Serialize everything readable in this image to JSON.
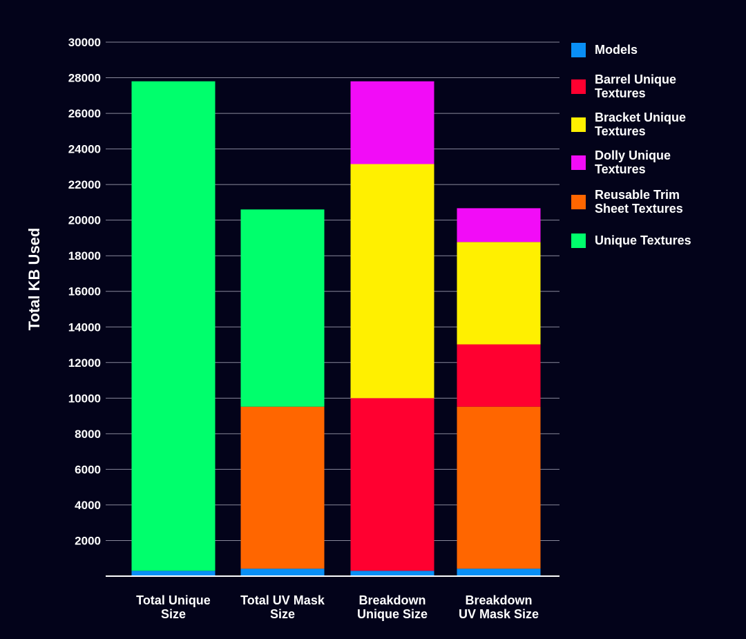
{
  "chart_data": {
    "type": "bar",
    "stacked": true,
    "title": "",
    "xlabel": "",
    "ylabel": "Total KB Used",
    "ylim": [
      0,
      30000
    ],
    "yticks": [
      2000,
      4000,
      6000,
      8000,
      10000,
      12000,
      14000,
      16000,
      18000,
      20000,
      22000,
      24000,
      26000,
      28000,
      30000
    ],
    "grid": true,
    "legend_position": "right",
    "categories": [
      [
        "Total Unique",
        "Size"
      ],
      [
        "Total UV Mask",
        "Size"
      ],
      [
        "Breakdown",
        "Unique Size"
      ],
      [
        "Breakdown",
        "UV Mask Size"
      ]
    ],
    "series": [
      {
        "name": "Models",
        "legend_lines": [
          "Models"
        ],
        "color": "#0a8ff5",
        "values": [
          300,
          420,
          300,
          420
        ]
      },
      {
        "name": "Barrel Unique Textures",
        "legend_lines": [
          "Barrel Unique",
          "Textures"
        ],
        "color": "#ff0030",
        "values": [
          0,
          0,
          9700,
          3500
        ]
      },
      {
        "name": "Bracket Unique Textures",
        "legend_lines": [
          "Bracket Unique",
          "Textures"
        ],
        "color": "#fff000",
        "values": [
          0,
          0,
          13150,
          5750
        ]
      },
      {
        "name": "Dolly Unique Textures",
        "legend_lines": [
          "Dolly Unique",
          "Textures"
        ],
        "color": "#f20cf7",
        "values": [
          0,
          0,
          4650,
          1900
        ]
      },
      {
        "name": "Reusable Trim Sheet Textures",
        "legend_lines": [
          "Reusable Trim",
          "Sheet Textures"
        ],
        "color": "#ff6600",
        "values": [
          0,
          9100,
          0,
          9100
        ]
      },
      {
        "name": "Unique Textures",
        "legend_lines": [
          "Unique Textures"
        ],
        "color": "#00ff6c",
        "values": [
          27500,
          11080,
          0,
          0
        ]
      }
    ],
    "stack_order": [
      "Models",
      "Reusable Trim Sheet Textures",
      "Barrel Unique Textures",
      "Bracket Unique Textures",
      "Dolly Unique Textures",
      "Unique Textures"
    ]
  }
}
